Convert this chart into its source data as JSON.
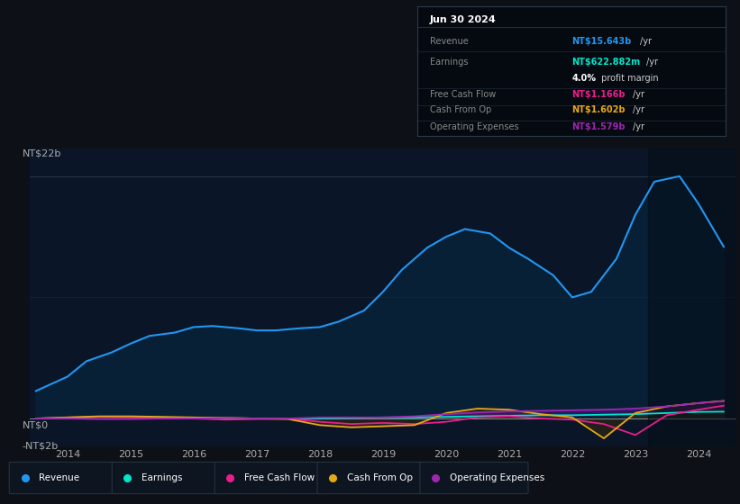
{
  "bg_color": "#0d1117",
  "chart_bg": "#0a1628",
  "title_box_bg": "#050a0f",
  "ylabel_top": "NT$22b",
  "ylabel_zero": "NT$0",
  "ylabel_neg": "-NT$2b",
  "x_labels": [
    "2014",
    "2015",
    "2016",
    "2017",
    "2018",
    "2019",
    "2020",
    "2021",
    "2022",
    "2023",
    "2024"
  ],
  "series": {
    "revenue": {
      "color": "#2196f3",
      "fill_color": "#0a2a45",
      "label": "Revenue",
      "data_x": [
        2013.5,
        2014.0,
        2014.3,
        2014.7,
        2015.0,
        2015.3,
        2015.7,
        2016.0,
        2016.3,
        2016.7,
        2017.0,
        2017.3,
        2017.7,
        2018.0,
        2018.3,
        2018.7,
        2019.0,
        2019.3,
        2019.7,
        2020.0,
        2020.3,
        2020.7,
        2021.0,
        2021.3,
        2021.7,
        2022.0,
        2022.3,
        2022.7,
        2023.0,
        2023.3,
        2023.7,
        2024.0,
        2024.4
      ],
      "data_y": [
        2.5,
        3.8,
        5.2,
        6.0,
        6.8,
        7.5,
        7.8,
        8.3,
        8.4,
        8.2,
        8.0,
        8.0,
        8.2,
        8.3,
        8.8,
        9.8,
        11.5,
        13.5,
        15.5,
        16.5,
        17.2,
        16.8,
        15.5,
        14.5,
        13.0,
        11.0,
        11.5,
        14.5,
        18.5,
        21.5,
        22.0,
        19.5,
        15.6
      ]
    },
    "earnings": {
      "color": "#00e5cc",
      "label": "Earnings",
      "data_x": [
        2013.5,
        2014.0,
        2014.5,
        2015.0,
        2015.5,
        2016.0,
        2016.5,
        2017.0,
        2017.5,
        2018.0,
        2018.5,
        2019.0,
        2019.5,
        2020.0,
        2020.5,
        2021.0,
        2021.5,
        2022.0,
        2022.5,
        2023.0,
        2023.5,
        2024.0,
        2024.4
      ],
      "data_y": [
        0.0,
        0.05,
        0.15,
        0.15,
        0.1,
        0.05,
        0.05,
        0.0,
        0.0,
        0.0,
        0.05,
        0.1,
        0.1,
        0.15,
        0.2,
        0.25,
        0.3,
        0.3,
        0.35,
        0.4,
        0.5,
        0.6,
        0.62
      ]
    },
    "free_cash_flow": {
      "color": "#e91e8c",
      "label": "Free Cash Flow",
      "data_x": [
        2013.5,
        2014.0,
        2014.5,
        2015.0,
        2015.5,
        2016.0,
        2016.5,
        2017.0,
        2017.5,
        2018.0,
        2018.5,
        2019.0,
        2019.5,
        2020.0,
        2020.5,
        2021.0,
        2021.5,
        2022.0,
        2022.5,
        2023.0,
        2023.5,
        2024.0,
        2024.4
      ],
      "data_y": [
        0.0,
        0.1,
        0.15,
        0.1,
        0.05,
        0.0,
        -0.1,
        -0.05,
        0.0,
        -0.3,
        -0.5,
        -0.4,
        -0.5,
        -0.3,
        0.1,
        0.2,
        0.0,
        -0.1,
        -0.5,
        -1.5,
        0.3,
        0.8,
        1.17
      ]
    },
    "cash_from_op": {
      "color": "#e6a817",
      "label": "Cash From Op",
      "data_x": [
        2013.5,
        2014.0,
        2014.5,
        2015.0,
        2015.5,
        2016.0,
        2016.5,
        2017.0,
        2017.5,
        2018.0,
        2018.5,
        2019.0,
        2019.5,
        2020.0,
        2020.5,
        2021.0,
        2021.5,
        2022.0,
        2022.5,
        2023.0,
        2023.5,
        2024.0,
        2024.4
      ],
      "data_y": [
        0.0,
        0.1,
        0.2,
        0.2,
        0.15,
        0.1,
        0.05,
        0.0,
        -0.05,
        -0.6,
        -0.8,
        -0.7,
        -0.6,
        0.5,
        0.9,
        0.8,
        0.4,
        0.1,
        -1.8,
        0.5,
        1.1,
        1.4,
        1.6
      ]
    },
    "operating_expenses": {
      "color": "#9c27b0",
      "label": "Operating Expenses",
      "data_x": [
        2013.5,
        2014.0,
        2014.5,
        2015.0,
        2015.5,
        2016.0,
        2016.5,
        2017.0,
        2017.5,
        2018.0,
        2018.5,
        2019.0,
        2019.5,
        2020.0,
        2020.5,
        2021.0,
        2021.5,
        2022.0,
        2022.5,
        2023.0,
        2023.5,
        2024.0,
        2024.4
      ],
      "data_y": [
        0.0,
        0.0,
        -0.05,
        -0.05,
        0.0,
        0.0,
        0.05,
        0.0,
        0.0,
        0.1,
        0.1,
        0.1,
        0.2,
        0.4,
        0.55,
        0.65,
        0.7,
        0.75,
        0.8,
        0.9,
        1.1,
        1.4,
        1.58
      ]
    }
  },
  "ylim": [
    -2.5,
    24.5
  ],
  "xlim": [
    2013.4,
    2024.6
  ],
  "legend": [
    {
      "label": "Revenue",
      "color": "#2196f3"
    },
    {
      "label": "Earnings",
      "color": "#00e5cc"
    },
    {
      "label": "Free Cash Flow",
      "color": "#e91e8c"
    },
    {
      "label": "Cash From Op",
      "color": "#e6a817"
    },
    {
      "label": "Operating Expenses",
      "color": "#9c27b0"
    }
  ]
}
